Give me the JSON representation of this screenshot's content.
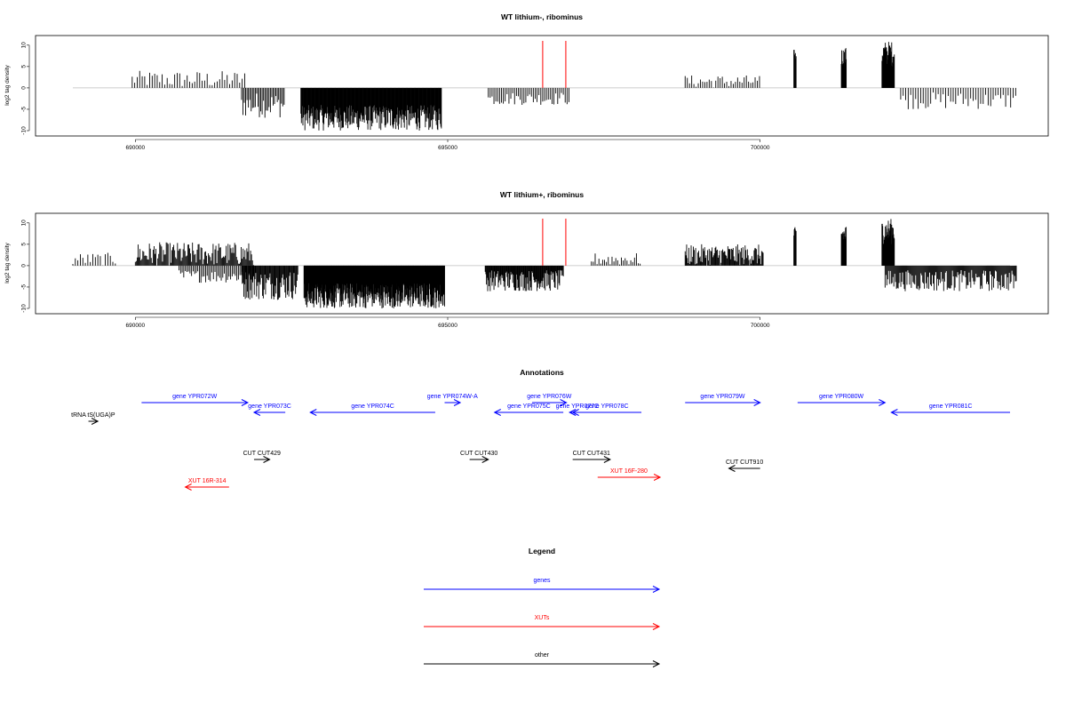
{
  "colors": {
    "genes": "#0000ff",
    "XUTs": "#ff0000",
    "other": "#000000",
    "highlight": "#ff0000",
    "baseline": "#bebebe"
  },
  "chart_data": [
    {
      "type": "bar",
      "title": "WT lithium-, ribominus",
      "ylabel": "log2 tag density",
      "xlim": [
        688900,
        704300
      ],
      "ylim": [
        -10,
        11
      ],
      "x_ticks": [
        690000,
        695000,
        700000
      ],
      "y_ticks": [
        10,
        5,
        0,
        -5,
        -10
      ],
      "highlight_positions": [
        696520,
        696890
      ],
      "dense_positions": [
        {
          "from": 689950,
          "to": 691750,
          "step": 40,
          "min": 0,
          "max": 4
        },
        {
          "from": 691700,
          "to": 692400,
          "step": 22,
          "min": -7,
          "max": -1
        },
        {
          "from": 692650,
          "to": 694900,
          "step": 8,
          "min": -10,
          "max": -4
        },
        {
          "from": 695650,
          "to": 696950,
          "step": 30,
          "min": -4,
          "max": -1
        },
        {
          "from": 698800,
          "to": 700000,
          "step": 35,
          "min": 0,
          "max": 3
        },
        {
          "from": 700540,
          "to": 700580,
          "step": 6,
          "min": 6,
          "max": 9
        },
        {
          "from": 701300,
          "to": 701380,
          "step": 6,
          "min": 5,
          "max": 9.5
        },
        {
          "from": 701950,
          "to": 702150,
          "step": 6,
          "min": 5,
          "max": 11
        },
        {
          "from": 702250,
          "to": 704100,
          "step": 40,
          "min": -5,
          "max": -1
        }
      ]
    },
    {
      "type": "bar",
      "title": "WT lithium+, ribominus",
      "ylabel": "log2 tag density",
      "xlim": [
        688900,
        704300
      ],
      "ylim": [
        -10,
        11
      ],
      "x_ticks": [
        690000,
        695000,
        700000
      ],
      "y_ticks": [
        10,
        5,
        0,
        -5,
        -10
      ],
      "highlight_positions": [
        696520,
        696890
      ],
      "dense_positions": [
        {
          "from": 689000,
          "to": 689700,
          "step": 40,
          "min": 0,
          "max": 3
        },
        {
          "from": 690000,
          "to": 691900,
          "step": 15,
          "min": 0,
          "max": 5.5
        },
        {
          "from": 690700,
          "to": 691900,
          "step": 25,
          "min": -4,
          "max": -1
        },
        {
          "from": 691700,
          "to": 692600,
          "step": 12,
          "min": -8,
          "max": -1
        },
        {
          "from": 692700,
          "to": 694950,
          "step": 6,
          "min": -10,
          "max": -4
        },
        {
          "from": 695600,
          "to": 696850,
          "step": 10,
          "min": -6,
          "max": -1
        },
        {
          "from": 697300,
          "to": 698100,
          "step": 30,
          "min": 0,
          "max": 3
        },
        {
          "from": 698800,
          "to": 700050,
          "step": 12,
          "min": 0,
          "max": 5
        },
        {
          "from": 700540,
          "to": 700580,
          "step": 6,
          "min": 6,
          "max": 9
        },
        {
          "from": 701300,
          "to": 701380,
          "step": 6,
          "min": 5,
          "max": 9.5
        },
        {
          "from": 701950,
          "to": 702150,
          "step": 6,
          "min": 5,
          "max": 11
        },
        {
          "from": 702000,
          "to": 704100,
          "step": 14,
          "min": -6,
          "max": -1
        }
      ]
    }
  ],
  "annotations": {
    "title": "Annotations",
    "features": [
      {
        "label": "gene YPR072W",
        "kind": "genes",
        "start": 690100,
        "end": 691800,
        "strand": "+",
        "row": 1
      },
      {
        "label": "gene YPR073C",
        "kind": "genes",
        "start": 691900,
        "end": 692400,
        "strand": "-",
        "row": 2
      },
      {
        "label": "gene YPR074C",
        "kind": "genes",
        "start": 692800,
        "end": 694800,
        "strand": "-",
        "row": 2
      },
      {
        "label": "gene YPR074W-A",
        "kind": "genes",
        "start": 694950,
        "end": 695200,
        "strand": "+",
        "row": 1
      },
      {
        "label": "gene YPR075C",
        "kind": "genes",
        "start": 695750,
        "end": 696850,
        "strand": "-",
        "row": 2
      },
      {
        "label": "gene YPR076W",
        "kind": "genes",
        "start": 696350,
        "end": 696900,
        "strand": "+",
        "row": 1
      },
      {
        "label": "gene YPR077C",
        "kind": "genes",
        "start": 696950,
        "end": 697200,
        "strand": "-",
        "row": 2
      },
      {
        "label": "gene YPR078C",
        "kind": "genes",
        "start": 697000,
        "end": 698100,
        "strand": "-",
        "row": 2
      },
      {
        "label": "gene YPR079W",
        "kind": "genes",
        "start": 698800,
        "end": 700000,
        "strand": "+",
        "row": 1
      },
      {
        "label": "gene YPR080W",
        "kind": "genes",
        "start": 700600,
        "end": 702000,
        "strand": "+",
        "row": 1
      },
      {
        "label": "gene YPR081C",
        "kind": "genes",
        "start": 702100,
        "end": 704000,
        "strand": "-",
        "row": 2
      },
      {
        "label": "tRNA tS(UGA)P",
        "kind": "other",
        "start": 689250,
        "end": 689400,
        "strand": "+",
        "row": 3
      },
      {
        "label": "CUT CUT429",
        "kind": "other",
        "start": 691900,
        "end": 692150,
        "strand": "+",
        "row": 4
      },
      {
        "label": "CUT CUT430",
        "kind": "other",
        "start": 695350,
        "end": 695650,
        "strand": "+",
        "row": 4
      },
      {
        "label": "CUT CUT431",
        "kind": "other",
        "start": 697000,
        "end": 697600,
        "strand": "+",
        "row": 4
      },
      {
        "label": "CUT CUT910",
        "kind": "other",
        "start": 699500,
        "end": 700000,
        "strand": "-",
        "row": 5
      },
      {
        "label": "XUT 16R-314",
        "kind": "XUTs",
        "start": 690800,
        "end": 691500,
        "strand": "-",
        "row": 6
      },
      {
        "label": "XUT 16F-280",
        "kind": "XUTs",
        "start": 697400,
        "end": 698400,
        "strand": "+",
        "row": 7
      }
    ]
  },
  "legend": {
    "title": "Legend",
    "items": [
      {
        "label": "genes",
        "kind": "genes"
      },
      {
        "label": "XUTs",
        "kind": "XUTs"
      },
      {
        "label": "other",
        "kind": "other"
      }
    ]
  }
}
